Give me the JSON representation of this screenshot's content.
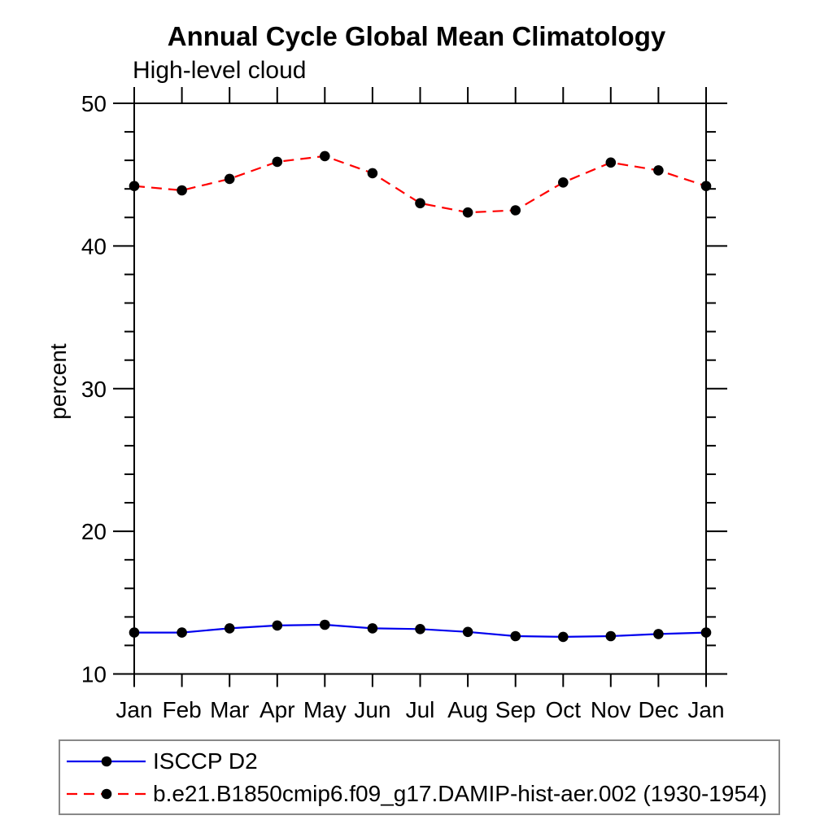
{
  "chart_data": {
    "type": "line",
    "title": "Annual Cycle Global Mean Climatology",
    "subtitle": "High-level cloud",
    "ylabel": "percent",
    "xlabel": "",
    "categories": [
      "Jan",
      "Feb",
      "Mar",
      "Apr",
      "May",
      "Jun",
      "Jul",
      "Aug",
      "Sep",
      "Oct",
      "Nov",
      "Dec",
      "Jan"
    ],
    "ylim": [
      10,
      50
    ],
    "yticks": [
      10,
      20,
      30,
      40,
      50
    ],
    "y_minor_step": 2,
    "grid": false,
    "legend_position": "bottom-left",
    "frame_color": "#000000",
    "series": [
      {
        "name": "ISCCP D2",
        "color": "#0000ee",
        "line_style": "solid",
        "marker": "circle",
        "marker_color": "#000000",
        "values": [
          12.9,
          12.9,
          13.2,
          13.4,
          13.45,
          13.2,
          13.15,
          12.95,
          12.65,
          12.6,
          12.65,
          12.8,
          12.9
        ]
      },
      {
        "name": "b.e21.B1850cmip6.f09_g17.DAMIP-hist-aer.002 (1930-1954)",
        "color": "#ff0000",
        "line_style": "dashed",
        "marker": "circle",
        "marker_color": "#000000",
        "values": [
          44.2,
          43.9,
          44.7,
          45.9,
          46.3,
          45.1,
          43.0,
          42.35,
          42.5,
          44.45,
          45.85,
          45.3,
          44.2
        ]
      }
    ]
  }
}
